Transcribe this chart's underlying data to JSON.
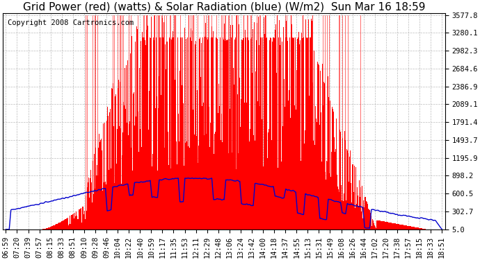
{
  "title": "Grid Power (red) (watts) & Solar Radiation (blue) (W/m2)  Sun Mar 16 18:59",
  "copyright": "Copyright 2008 Cartronics.com",
  "bg_color": "#ffffff",
  "plot_bg_color": "#ffffff",
  "grid_color": "#aaaaaa",
  "red_color": "#ff0000",
  "blue_color": "#0000cc",
  "yticks": [
    5.0,
    302.7,
    600.5,
    898.2,
    1195.9,
    1493.7,
    1791.4,
    2089.1,
    2386.9,
    2684.6,
    2982.3,
    3280.1,
    3577.8
  ],
  "ymin": 5.0,
  "ymax": 3577.8,
  "xtick_labels": [
    "06:59",
    "07:20",
    "07:39",
    "07:57",
    "08:15",
    "08:33",
    "08:51",
    "09:10",
    "09:28",
    "09:46",
    "10:04",
    "10:22",
    "10:40",
    "10:59",
    "11:17",
    "11:35",
    "11:53",
    "12:11",
    "12:29",
    "12:48",
    "13:06",
    "13:24",
    "13:42",
    "14:00",
    "14:18",
    "14:37",
    "14:55",
    "15:13",
    "15:31",
    "15:49",
    "16:08",
    "16:26",
    "16:44",
    "17:02",
    "17:20",
    "17:38",
    "17:57",
    "18:15",
    "18:33",
    "18:51"
  ],
  "n_points": 780,
  "title_fontsize": 11,
  "tick_fontsize": 7.5,
  "copyright_fontsize": 7.5,
  "solar_max": 860,
  "power_max": 3577.8,
  "power_plateau": 3200
}
